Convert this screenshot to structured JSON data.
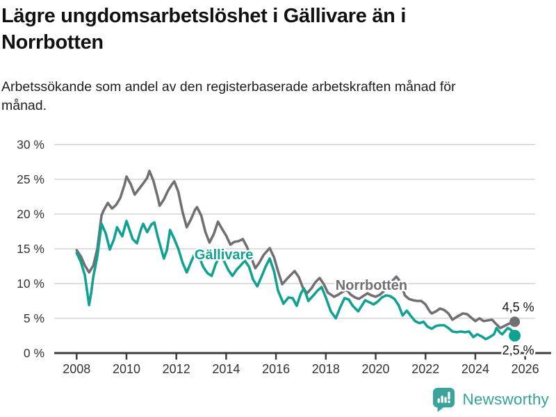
{
  "header": {
    "title": "Lägre ungdomsarbetslöshet i Gällivare än i Norrbotten",
    "subtitle": "Arbetssökande som andel av den registerbaserade arbetskraften månad för månad."
  },
  "footer": {
    "brand": "Newsworthy"
  },
  "colors": {
    "accent_teal": "#10a193",
    "accent_gray": "#6f6f74",
    "grid": "#dedede",
    "axis": "#3d3d3d",
    "tick_text": "#333333",
    "end_label_text": "#111111",
    "logo_teal": "#3aa39b"
  },
  "chart_data": {
    "type": "line",
    "title": "Lägre ungdomsarbetslöshet i Gällivare än i Norrbotten",
    "xlabel": "",
    "ylabel": "Arbetssökande som andel av den registerbaserade arbetskraften, %",
    "xlim": [
      2007.1,
      2026.4
    ],
    "ylim": [
      0,
      30
    ],
    "grid": "horizontal",
    "x_ticks": [
      2008,
      2010,
      2012,
      2014,
      2016,
      2018,
      2020,
      2022,
      2024,
      2026
    ],
    "y_ticks": [
      0,
      5,
      10,
      15,
      20,
      25,
      30
    ],
    "y_tick_suffix": " %",
    "legend_position": "inline-labels",
    "series": [
      {
        "name": "Norrbotten",
        "color": "#6f6f74",
        "end_label": "4,5 %",
        "end_value": 4.5,
        "label_at": {
          "x": 2019.83,
          "y": 9.8
        },
        "points": [
          [
            2008.0,
            14.8
          ],
          [
            2008.17,
            13.9
          ],
          [
            2008.33,
            12.6
          ],
          [
            2008.5,
            11.6
          ],
          [
            2008.67,
            12.6
          ],
          [
            2008.83,
            15.0
          ],
          [
            2009.0,
            19.8
          ],
          [
            2009.08,
            20.5
          ],
          [
            2009.25,
            21.6
          ],
          [
            2009.42,
            20.8
          ],
          [
            2009.58,
            21.3
          ],
          [
            2009.75,
            22.3
          ],
          [
            2009.92,
            24.2
          ],
          [
            2010.0,
            25.4
          ],
          [
            2010.17,
            24.3
          ],
          [
            2010.33,
            22.8
          ],
          [
            2010.5,
            23.6
          ],
          [
            2010.67,
            24.4
          ],
          [
            2010.83,
            25.2
          ],
          [
            2010.92,
            26.2
          ],
          [
            2011.08,
            24.8
          ],
          [
            2011.25,
            22.5
          ],
          [
            2011.33,
            21.2
          ],
          [
            2011.5,
            22.1
          ],
          [
            2011.67,
            23.4
          ],
          [
            2011.83,
            24.3
          ],
          [
            2011.92,
            24.7
          ],
          [
            2012.08,
            23.2
          ],
          [
            2012.25,
            20.3
          ],
          [
            2012.42,
            18.1
          ],
          [
            2012.58,
            19.2
          ],
          [
            2012.75,
            20.6
          ],
          [
            2012.83,
            21.0
          ],
          [
            2013.0,
            19.8
          ],
          [
            2013.17,
            17.4
          ],
          [
            2013.33,
            15.9
          ],
          [
            2013.5,
            17.1
          ],
          [
            2013.67,
            18.9
          ],
          [
            2013.83,
            17.9
          ],
          [
            2014.0,
            16.9
          ],
          [
            2014.17,
            15.6
          ],
          [
            2014.33,
            16.0
          ],
          [
            2014.5,
            16.1
          ],
          [
            2014.67,
            16.4
          ],
          [
            2014.83,
            15.3
          ],
          [
            2015.0,
            13.8
          ],
          [
            2015.17,
            12.2
          ],
          [
            2015.33,
            13.0
          ],
          [
            2015.5,
            14.1
          ],
          [
            2015.67,
            14.8
          ],
          [
            2015.75,
            15.1
          ],
          [
            2015.92,
            13.8
          ],
          [
            2016.08,
            11.8
          ],
          [
            2016.25,
            9.9
          ],
          [
            2016.42,
            10.6
          ],
          [
            2016.58,
            11.2
          ],
          [
            2016.75,
            11.8
          ],
          [
            2016.92,
            10.9
          ],
          [
            2017.08,
            9.4
          ],
          [
            2017.25,
            8.6
          ],
          [
            2017.42,
            9.3
          ],
          [
            2017.58,
            10.2
          ],
          [
            2017.75,
            10.8
          ],
          [
            2017.92,
            9.9
          ],
          [
            2018.08,
            8.7
          ],
          [
            2018.33,
            8.1
          ],
          [
            2018.5,
            8.4
          ],
          [
            2018.67,
            8.8
          ],
          [
            2018.83,
            9.1
          ],
          [
            2019.0,
            8.4
          ],
          [
            2019.17,
            8.0
          ],
          [
            2019.33,
            7.8
          ],
          [
            2019.5,
            8.2
          ],
          [
            2019.67,
            8.6
          ],
          [
            2019.83,
            8.3
          ],
          [
            2020.0,
            8.1
          ],
          [
            2020.17,
            8.4
          ],
          [
            2020.33,
            8.9
          ],
          [
            2020.5,
            9.6
          ],
          [
            2020.67,
            10.4
          ],
          [
            2020.83,
            11.0
          ],
          [
            2021.0,
            10.2
          ],
          [
            2021.17,
            8.3
          ],
          [
            2021.33,
            7.8
          ],
          [
            2021.5,
            7.6
          ],
          [
            2021.67,
            7.5
          ],
          [
            2021.83,
            7.5
          ],
          [
            2022.0,
            7.0
          ],
          [
            2022.17,
            6.0
          ],
          [
            2022.25,
            5.7
          ],
          [
            2022.42,
            6.0
          ],
          [
            2022.58,
            6.4
          ],
          [
            2022.75,
            6.2
          ],
          [
            2022.92,
            5.7
          ],
          [
            2023.08,
            4.8
          ],
          [
            2023.25,
            5.2
          ],
          [
            2023.5,
            5.7
          ],
          [
            2023.67,
            5.6
          ],
          [
            2023.83,
            5.1
          ],
          [
            2024.0,
            4.6
          ],
          [
            2024.17,
            5.0
          ],
          [
            2024.33,
            4.6
          ],
          [
            2024.5,
            4.7
          ],
          [
            2024.67,
            4.8
          ],
          [
            2024.83,
            4.2
          ],
          [
            2025.0,
            3.6
          ],
          [
            2025.17,
            3.9
          ],
          [
            2025.33,
            4.2
          ],
          [
            2025.5,
            4.4
          ],
          [
            2025.58,
            4.5
          ]
        ]
      },
      {
        "name": "Gällivare",
        "color": "#10a193",
        "end_label": "2,5 %",
        "end_value": 2.5,
        "label_at": {
          "x": 2013.91,
          "y": 14.2
        },
        "points": [
          [
            2008.0,
            14.4
          ],
          [
            2008.17,
            13.1
          ],
          [
            2008.33,
            11.2
          ],
          [
            2008.5,
            6.9
          ],
          [
            2008.58,
            8.6
          ],
          [
            2008.67,
            11.0
          ],
          [
            2008.83,
            13.9
          ],
          [
            2009.0,
            18.6
          ],
          [
            2009.17,
            17.2
          ],
          [
            2009.33,
            14.9
          ],
          [
            2009.5,
            16.4
          ],
          [
            2009.62,
            18.1
          ],
          [
            2009.83,
            16.8
          ],
          [
            2010.0,
            19.0
          ],
          [
            2010.08,
            18.2
          ],
          [
            2010.25,
            16.4
          ],
          [
            2010.42,
            15.8
          ],
          [
            2010.58,
            17.8
          ],
          [
            2010.67,
            18.6
          ],
          [
            2010.83,
            17.4
          ],
          [
            2011.0,
            18.5
          ],
          [
            2011.12,
            18.8
          ],
          [
            2011.25,
            16.8
          ],
          [
            2011.5,
            13.6
          ],
          [
            2011.62,
            14.8
          ],
          [
            2011.75,
            17.7
          ],
          [
            2011.92,
            16.4
          ],
          [
            2012.08,
            15.0
          ],
          [
            2012.25,
            13.0
          ],
          [
            2012.42,
            11.6
          ],
          [
            2012.58,
            13.0
          ],
          [
            2012.75,
            14.4
          ],
          [
            2012.92,
            13.8
          ],
          [
            2013.08,
            12.4
          ],
          [
            2013.25,
            11.5
          ],
          [
            2013.42,
            11.1
          ],
          [
            2013.58,
            12.8
          ],
          [
            2013.75,
            14.0
          ],
          [
            2013.92,
            13.2
          ],
          [
            2014.08,
            12.0
          ],
          [
            2014.25,
            11.1
          ],
          [
            2014.42,
            12.0
          ],
          [
            2014.58,
            12.6
          ],
          [
            2014.75,
            13.3
          ],
          [
            2014.92,
            12.4
          ],
          [
            2015.08,
            10.6
          ],
          [
            2015.25,
            9.6
          ],
          [
            2015.42,
            11.0
          ],
          [
            2015.58,
            12.4
          ],
          [
            2015.75,
            13.6
          ],
          [
            2015.92,
            11.8
          ],
          [
            2016.08,
            9.0
          ],
          [
            2016.3,
            7.1
          ],
          [
            2016.5,
            8.0
          ],
          [
            2016.67,
            7.9
          ],
          [
            2016.83,
            6.8
          ],
          [
            2017.0,
            8.6
          ],
          [
            2017.12,
            9.3
          ],
          [
            2017.3,
            7.5
          ],
          [
            2017.5,
            8.3
          ],
          [
            2017.67,
            9.0
          ],
          [
            2017.83,
            9.5
          ],
          [
            2018.0,
            8.0
          ],
          [
            2018.2,
            6.0
          ],
          [
            2018.4,
            5.0
          ],
          [
            2018.58,
            6.6
          ],
          [
            2018.75,
            7.9
          ],
          [
            2018.92,
            7.7
          ],
          [
            2019.08,
            6.8
          ],
          [
            2019.3,
            6.0
          ],
          [
            2019.58,
            7.6
          ],
          [
            2019.75,
            7.3
          ],
          [
            2019.92,
            7.0
          ],
          [
            2020.08,
            7.4
          ],
          [
            2020.25,
            8.0
          ],
          [
            2020.42,
            8.3
          ],
          [
            2020.58,
            8.2
          ],
          [
            2020.75,
            7.8
          ],
          [
            2020.92,
            6.9
          ],
          [
            2021.08,
            5.4
          ],
          [
            2021.25,
            6.1
          ],
          [
            2021.42,
            5.3
          ],
          [
            2021.58,
            4.6
          ],
          [
            2021.75,
            4.3
          ],
          [
            2021.92,
            4.5
          ],
          [
            2022.08,
            3.8
          ],
          [
            2022.25,
            3.5
          ],
          [
            2022.42,
            3.9
          ],
          [
            2022.58,
            4.0
          ],
          [
            2022.75,
            4.0
          ],
          [
            2022.92,
            3.6
          ],
          [
            2023.08,
            3.1
          ],
          [
            2023.25,
            3.0
          ],
          [
            2023.42,
            3.1
          ],
          [
            2023.58,
            3.0
          ],
          [
            2023.75,
            3.1
          ],
          [
            2023.92,
            2.3
          ],
          [
            2024.08,
            2.7
          ],
          [
            2024.25,
            2.4
          ],
          [
            2024.42,
            2.0
          ],
          [
            2024.58,
            2.3
          ],
          [
            2024.75,
            2.7
          ],
          [
            2024.85,
            3.6
          ],
          [
            2025.0,
            2.9
          ],
          [
            2025.08,
            2.7
          ],
          [
            2025.3,
            3.6
          ],
          [
            2025.45,
            3.3
          ],
          [
            2025.58,
            2.5
          ]
        ]
      }
    ]
  }
}
